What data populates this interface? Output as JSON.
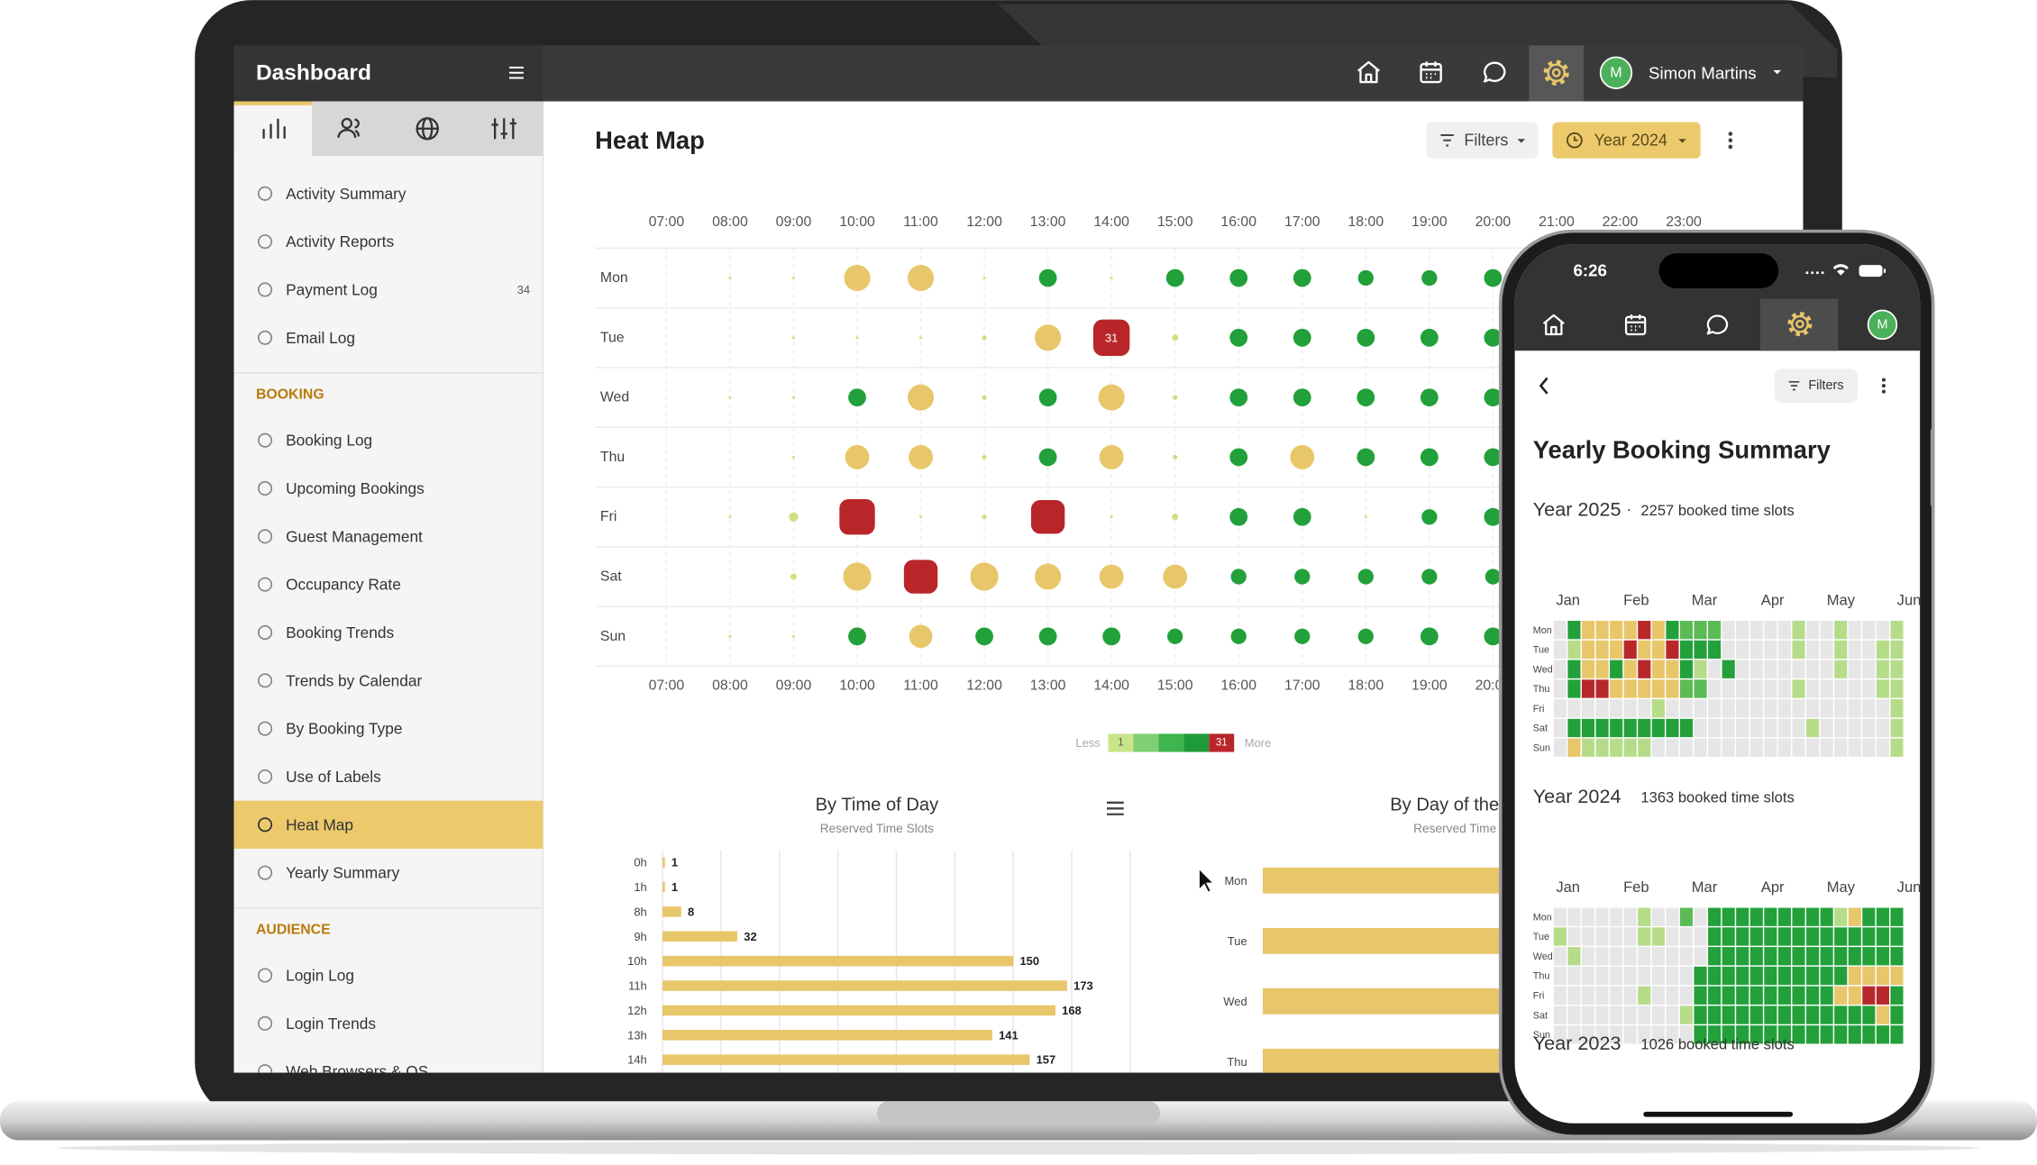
{
  "sidebar": {
    "title": "Dashboard",
    "groups": [
      {
        "items": [
          {
            "label": "Activity Summary"
          },
          {
            "label": "Activity Reports"
          },
          {
            "label": "Payment Log",
            "badge": 34
          },
          {
            "label": "Email Log"
          }
        ]
      },
      {
        "heading": "BOOKING",
        "items": [
          {
            "label": "Booking Log"
          },
          {
            "label": "Upcoming Bookings"
          },
          {
            "label": "Guest Management"
          },
          {
            "label": "Occupancy Rate"
          },
          {
            "label": "Booking Trends"
          },
          {
            "label": "Trends by Calendar"
          },
          {
            "label": "By Booking Type"
          },
          {
            "label": "Use of Labels"
          },
          {
            "label": "Heat Map",
            "active": true
          },
          {
            "label": "Yearly Summary"
          }
        ]
      },
      {
        "heading": "AUDIENCE",
        "items": [
          {
            "label": "Login Log"
          },
          {
            "label": "Login Trends"
          },
          {
            "label": "Web Browsers & OS"
          }
        ]
      }
    ]
  },
  "topbar": {
    "avatar": "M",
    "user": "Simon Martins"
  },
  "page": {
    "title": "Heat Map",
    "filters": "Filters",
    "period": "Year 2024"
  },
  "phone": {
    "time": "6:26",
    "avatar": "M",
    "filters": "Filters",
    "title": "Yearly Booking Summary"
  },
  "chart_data": [
    {
      "type": "heatmap",
      "x": [
        "07:00",
        "08:00",
        "09:00",
        "10:00",
        "11:00",
        "12:00",
        "13:00",
        "14:00",
        "15:00",
        "16:00",
        "17:00",
        "18:00",
        "19:00",
        "20:00",
        "21:00",
        "22:00",
        "23:00"
      ],
      "y": [
        "Mon",
        "Tue",
        "Wed",
        "Thu",
        "Fri",
        "Sat",
        "Sun"
      ],
      "values": [
        [
          null,
          1,
          1,
          20,
          20,
          1,
          12,
          1,
          12,
          12,
          12,
          10,
          10,
          12,
          null,
          null,
          null
        ],
        [
          null,
          null,
          1,
          1,
          1,
          2,
          20,
          31,
          3,
          12,
          12,
          12,
          12,
          12,
          null,
          null,
          null
        ],
        [
          null,
          1,
          1,
          12,
          20,
          2,
          12,
          20,
          2,
          12,
          12,
          12,
          12,
          12,
          null,
          null,
          null
        ],
        [
          null,
          null,
          1,
          18,
          18,
          2,
          12,
          18,
          2,
          12,
          18,
          12,
          12,
          12,
          null,
          null,
          null
        ],
        [
          null,
          1,
          5,
          30,
          1,
          2,
          28,
          1,
          3,
          12,
          12,
          1,
          10,
          12,
          null,
          null,
          null
        ],
        [
          null,
          null,
          3,
          22,
          28,
          22,
          20,
          18,
          18,
          10,
          10,
          10,
          10,
          10,
          null,
          null,
          null
        ],
        [
          null,
          1,
          1,
          12,
          17,
          12,
          12,
          12,
          10,
          10,
          10,
          10,
          12,
          12,
          null,
          null,
          null
        ]
      ],
      "value_labels": [
        [
          null,
          null,
          null,
          null,
          null,
          null,
          null,
          null,
          null,
          null,
          null,
          null,
          null,
          null,
          null,
          null,
          null
        ],
        [
          null,
          null,
          null,
          null,
          null,
          null,
          null,
          "31",
          null,
          null,
          null,
          null,
          null,
          null,
          null,
          null,
          null
        ],
        [
          null,
          null,
          null,
          null,
          null,
          null,
          null,
          null,
          null,
          null,
          null,
          null,
          null,
          null,
          null,
          null,
          null
        ],
        [
          null,
          null,
          null,
          null,
          null,
          null,
          null,
          null,
          null,
          null,
          null,
          null,
          null,
          null,
          null,
          null,
          null
        ],
        [
          null,
          null,
          null,
          null,
          null,
          null,
          null,
          null,
          null,
          null,
          null,
          null,
          null,
          null,
          null,
          null,
          null
        ],
        [
          null,
          null,
          null,
          null,
          null,
          null,
          null,
          null,
          null,
          null,
          null,
          null,
          null,
          null,
          null,
          null,
          null
        ],
        [
          null,
          null,
          null,
          null,
          null,
          null,
          null,
          null,
          null,
          null,
          null,
          null,
          null,
          null,
          null,
          null,
          null
        ]
      ],
      "colors": [
        "#cfdf82",
        "#22a03a",
        "#22a03a",
        "#e8c66a",
        "#e8c66a",
        "#b8262a"
      ],
      "legend": {
        "low": "Less",
        "high": "More",
        "min": 1,
        "max": 31,
        "colors": [
          "#c9e58c",
          "#7fcf74",
          "#3fb54d",
          "#1f9a38",
          "#b8262a"
        ]
      }
    },
    {
      "type": "bar",
      "orientation": "horizontal",
      "title": "By Time of Day",
      "subtitle": "Reserved Time Slots",
      "categories": [
        "0h",
        "1h",
        "8h",
        "9h",
        "10h",
        "11h",
        "12h",
        "13h",
        "14h"
      ],
      "values": [
        1,
        1,
        8,
        32,
        150,
        173,
        168,
        141,
        157
      ],
      "color": "#e8c66a",
      "xlim": [
        0,
        200
      ],
      "xticks": [
        0,
        25,
        50,
        75,
        100,
        125,
        150,
        175,
        200
      ],
      "grid": true,
      "data_labels": true
    },
    {
      "type": "bar",
      "orientation": "horizontal",
      "title": "By Day of the Week",
      "subtitle": "Reserved Time Slots",
      "categories": [
        "Mon",
        "Tue",
        "Wed",
        "Thu"
      ],
      "values": [
        190,
        186,
        188,
        182
      ],
      "color": "#e8c66a",
      "xlim": [
        0,
        200
      ],
      "grid": false,
      "data_labels": false
    },
    {
      "type": "calendar",
      "title": "Year 2025",
      "separator": "·",
      "subtitle": "2257 booked time slots",
      "categories": [
        "Jan",
        "Feb",
        "Mar",
        "Apr",
        "May",
        "Jun"
      ],
      "y": [
        "Mon",
        "Tue",
        "Wed",
        "Thu",
        "Fri",
        "Sat",
        "Sun"
      ],
      "colors": [
        "#e6e6e6",
        "#b6dc8a",
        "#5cbb55",
        "#23a03a",
        "#e8c66a",
        "#b8282b"
      ],
      "values": [
        [
          0,
          3,
          4,
          4,
          4,
          4,
          5,
          4,
          3,
          2,
          2,
          2,
          0,
          0,
          0,
          0,
          0,
          1,
          0,
          0,
          1,
          0,
          0,
          0,
          1
        ],
        [
          0,
          1,
          4,
          4,
          4,
          5,
          4,
          4,
          5,
          3,
          3,
          3,
          0,
          0,
          0,
          0,
          0,
          1,
          0,
          0,
          1,
          0,
          0,
          1,
          1
        ],
        [
          0,
          3,
          4,
          4,
          3,
          4,
          5,
          4,
          4,
          3,
          1,
          0,
          3,
          0,
          0,
          0,
          0,
          0,
          0,
          0,
          1,
          0,
          0,
          1,
          1
        ],
        [
          0,
          3,
          5,
          5,
          4,
          4,
          4,
          4,
          4,
          2,
          2,
          0,
          0,
          0,
          0,
          0,
          0,
          1,
          0,
          0,
          0,
          0,
          0,
          1,
          1
        ],
        [
          0,
          0,
          0,
          0,
          0,
          0,
          0,
          1,
          0,
          0,
          0,
          0,
          0,
          0,
          0,
          0,
          0,
          0,
          0,
          0,
          0,
          0,
          0,
          0,
          1
        ],
        [
          0,
          3,
          3,
          3,
          3,
          3,
          3,
          3,
          3,
          3,
          0,
          0,
          0,
          0,
          0,
          0,
          0,
          0,
          1,
          0,
          0,
          0,
          0,
          0,
          1
        ],
        [
          0,
          4,
          1,
          1,
          1,
          1,
          1,
          0,
          0,
          0,
          0,
          0,
          0,
          0,
          0,
          0,
          0,
          0,
          0,
          0,
          0,
          0,
          0,
          0,
          1
        ]
      ]
    },
    {
      "type": "calendar",
      "title": "Year 2024",
      "subtitle": "1363 booked time slots",
      "categories": [
        "Jan",
        "Feb",
        "Mar",
        "Apr",
        "May",
        "Jun"
      ],
      "y": [
        "Mon",
        "Tue",
        "Wed",
        "Thu",
        "Fri",
        "Sat",
        "Sun"
      ],
      "colors": [
        "#e6e6e6",
        "#b6dc8a",
        "#5cbb55",
        "#23a03a",
        "#e8c66a",
        "#b8282b"
      ],
      "values": [
        [
          0,
          0,
          0,
          0,
          0,
          0,
          1,
          0,
          0,
          2,
          0,
          3,
          3,
          3,
          3,
          3,
          3,
          3,
          3,
          3,
          1,
          4,
          3,
          3,
          3
        ],
        [
          1,
          0,
          0,
          0,
          0,
          0,
          1,
          1,
          0,
          0,
          0,
          3,
          3,
          3,
          3,
          3,
          3,
          3,
          3,
          3,
          3,
          3,
          3,
          3,
          3
        ],
        [
          0,
          1,
          0,
          0,
          0,
          0,
          0,
          0,
          0,
          0,
          0,
          3,
          3,
          3,
          3,
          3,
          3,
          3,
          3,
          3,
          3,
          3,
          3,
          3,
          3
        ],
        [
          0,
          0,
          0,
          0,
          0,
          0,
          0,
          0,
          0,
          0,
          3,
          3,
          3,
          3,
          3,
          3,
          3,
          3,
          3,
          3,
          3,
          4,
          4,
          4,
          4
        ],
        [
          0,
          0,
          0,
          0,
          0,
          0,
          1,
          0,
          0,
          0,
          3,
          3,
          3,
          3,
          3,
          3,
          3,
          3,
          3,
          3,
          4,
          4,
          5,
          5,
          3
        ],
        [
          0,
          0,
          0,
          0,
          0,
          0,
          0,
          0,
          0,
          1,
          3,
          3,
          3,
          3,
          3,
          3,
          3,
          3,
          3,
          3,
          3,
          3,
          3,
          4,
          3
        ],
        [
          0,
          0,
          0,
          0,
          0,
          0,
          0,
          0,
          0,
          0,
          3,
          3,
          3,
          3,
          3,
          3,
          3,
          3,
          3,
          3,
          3,
          3,
          3,
          3,
          3
        ]
      ]
    },
    {
      "type": "calendar",
      "title": "Year 2023",
      "subtitle": "1026 booked time slots",
      "categories": [
        "Jan",
        "Feb",
        "Mar",
        "Apr",
        "May",
        "Jun"
      ]
    }
  ]
}
